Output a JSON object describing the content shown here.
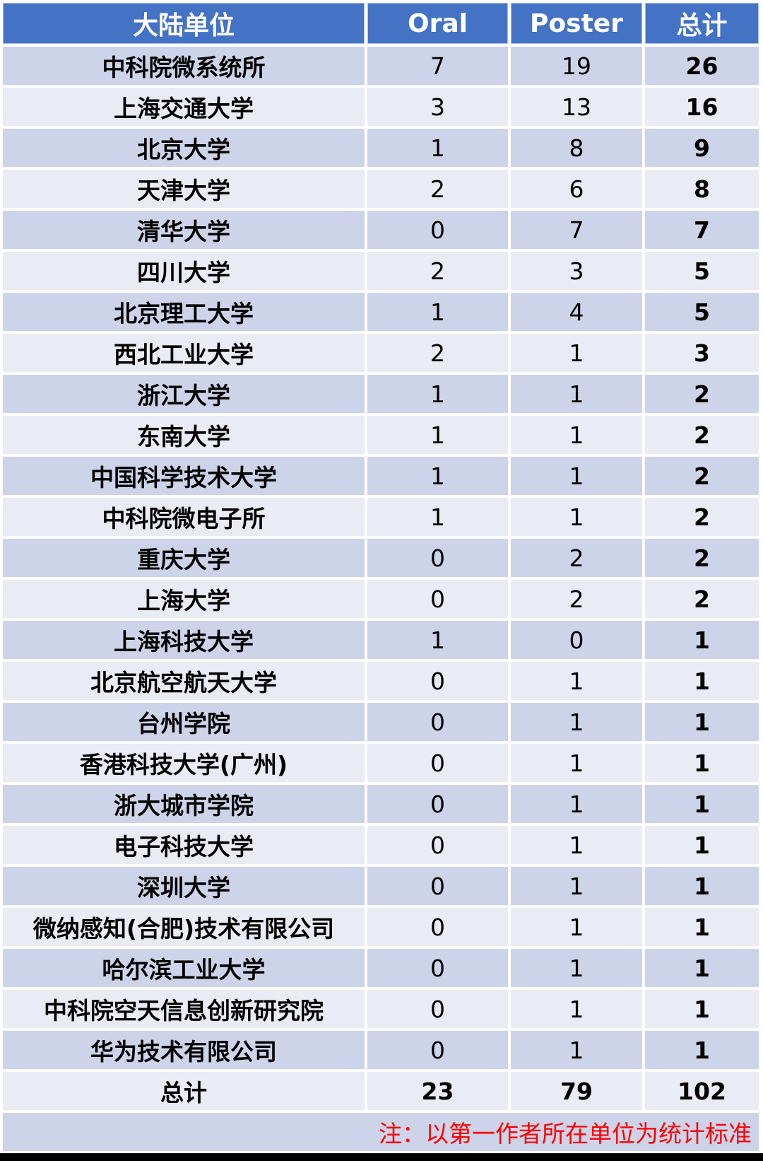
{
  "chart_data": {
    "type": "table",
    "columns": [
      "大陆单位",
      "Oral",
      "Poster",
      "总计"
    ],
    "rows": [
      [
        "中科院微系统所",
        7,
        19,
        26
      ],
      [
        "上海交通大学",
        3,
        13,
        16
      ],
      [
        "北京大学",
        1,
        8,
        9
      ],
      [
        "天津大学",
        2,
        6,
        8
      ],
      [
        "清华大学",
        0,
        7,
        7
      ],
      [
        "四川大学",
        2,
        3,
        5
      ],
      [
        "北京理工大学",
        1,
        4,
        5
      ],
      [
        "西北工业大学",
        2,
        1,
        3
      ],
      [
        "浙江大学",
        1,
        1,
        2
      ],
      [
        "东南大学",
        1,
        1,
        2
      ],
      [
        "中国科学技术大学",
        1,
        1,
        2
      ],
      [
        "中科院微电子所",
        1,
        1,
        2
      ],
      [
        "重庆大学",
        0,
        2,
        2
      ],
      [
        "上海大学",
        0,
        2,
        2
      ],
      [
        "上海科技大学",
        1,
        0,
        1
      ],
      [
        "北京航空航天大学",
        0,
        1,
        1
      ],
      [
        "台州学院",
        0,
        1,
        1
      ],
      [
        "香港科技大学(广州)",
        0,
        1,
        1
      ],
      [
        "浙大城市学院",
        0,
        1,
        1
      ],
      [
        "电子科技大学",
        0,
        1,
        1
      ],
      [
        "深圳大学",
        0,
        1,
        1
      ],
      [
        "微纳感知(合肥)技术有限公司",
        0,
        1,
        1
      ],
      [
        "哈尔滨工业大学",
        0,
        1,
        1
      ],
      [
        "中科院空天信息创新研究院",
        0,
        1,
        1
      ],
      [
        "华为技术有限公司",
        0,
        1,
        1
      ]
    ],
    "total_row": {
      "label": "总计",
      "oral": "23",
      "poster": "79",
      "total": "102"
    },
    "note": "注：以第一作者所在单位为统计标准",
    "layout_hints": {
      "header_position": "top",
      "banding": "alternating-rows",
      "grid": "white-gaps"
    }
  },
  "colors": {
    "header_bg": "#4472C4",
    "header_text": "#FFFFFF",
    "band_dark": "#CDD3E8",
    "band_light": "#E9EBF5",
    "body_text": "#000000",
    "note_text": "#FF0000",
    "bottom_bar": "#000000",
    "background": "#FFFFFF"
  }
}
